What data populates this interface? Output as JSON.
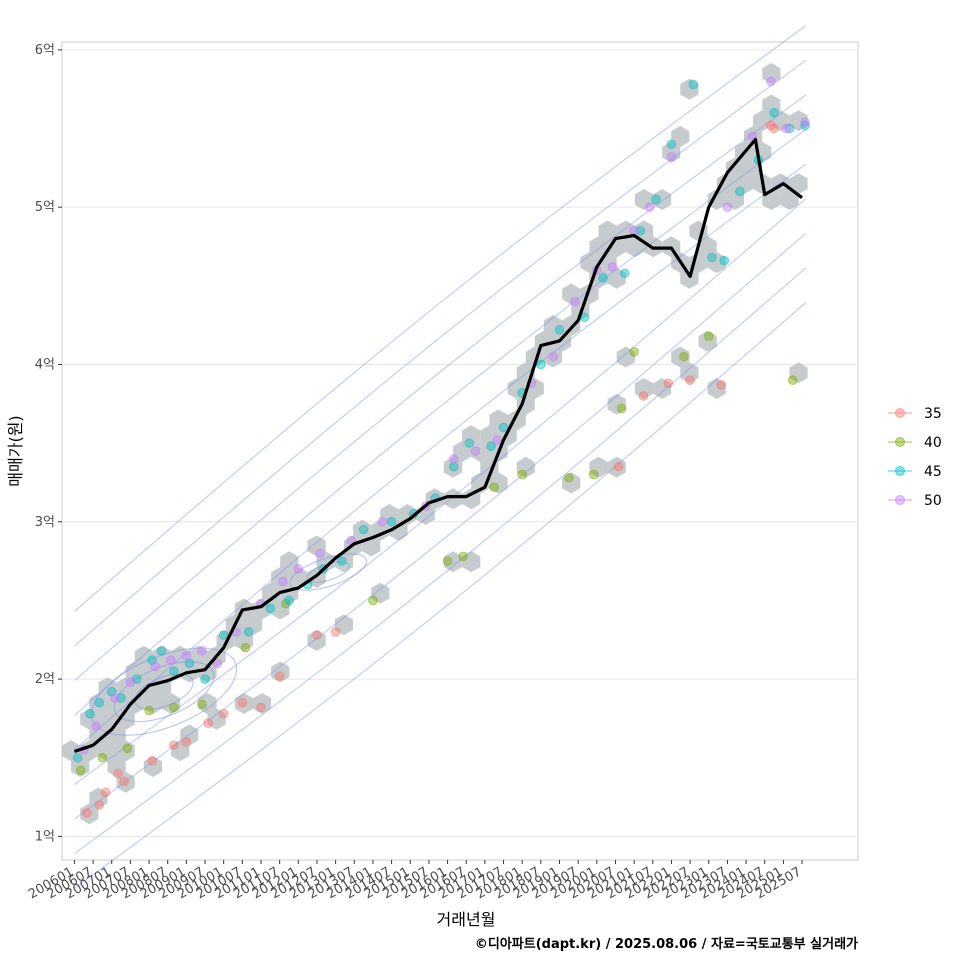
{
  "chart_data": {
    "type": "scatter",
    "xlabel": "거래년월",
    "ylabel": "매매가(원)",
    "caption": "©디아파트(dapt.kr) / 2025.08.06 / 자료=국토교통부 실거래가",
    "x_ticks": [
      "200601",
      "200607",
      "200701",
      "200707",
      "200801",
      "200807",
      "200901",
      "200907",
      "201001",
      "201007",
      "201101",
      "201107",
      "201201",
      "201207",
      "201301",
      "201307",
      "201401",
      "201407",
      "201501",
      "201507",
      "201601",
      "201607",
      "201701",
      "201707",
      "201801",
      "201807",
      "201901",
      "201907",
      "202001",
      "202007",
      "202101",
      "202107",
      "202201",
      "202207",
      "202301",
      "202307",
      "202401",
      "202407",
      "202501",
      "202507"
    ],
    "y_ticks": [
      "1억",
      "2억",
      "3억",
      "4억",
      "5억",
      "6억"
    ],
    "y_values": [
      1,
      2,
      3,
      4,
      5,
      6
    ],
    "ylim": [
      0.85,
      6.05
    ],
    "x_range": [
      "2005-09",
      "2027-01"
    ],
    "legend": {
      "position": "right",
      "items": [
        {
          "label": "35",
          "color": "#F8766D"
        },
        {
          "label": "40",
          "color": "#7CAE00"
        },
        {
          "label": "45",
          "color": "#00BFC4"
        },
        {
          "label": "50",
          "color": "#C77CFF"
        }
      ]
    },
    "trend_line": {
      "color": "#000000",
      "x": [
        "2006-01",
        "2006-07",
        "2007-01",
        "2007-07",
        "2008-01",
        "2008-07",
        "2009-01",
        "2009-07",
        "2010-01",
        "2010-07",
        "2011-01",
        "2011-07",
        "2012-01",
        "2012-07",
        "2013-01",
        "2013-07",
        "2014-01",
        "2014-07",
        "2015-01",
        "2015-07",
        "2016-01",
        "2016-07",
        "2017-01",
        "2017-07",
        "2018-01",
        "2018-07",
        "2019-01",
        "2019-07",
        "2020-01",
        "2020-07",
        "2021-01",
        "2021-07",
        "2022-01",
        "2022-07",
        "2023-01",
        "2023-07",
        "2024-01",
        "2024-04",
        "2024-07",
        "2025-01",
        "2025-07"
      ],
      "y": [
        1.54,
        1.58,
        1.68,
        1.84,
        1.96,
        1.99,
        2.04,
        2.06,
        2.2,
        2.44,
        2.46,
        2.55,
        2.58,
        2.66,
        2.77,
        2.86,
        2.9,
        2.95,
        3.02,
        3.12,
        3.16,
        3.16,
        3.22,
        3.52,
        3.75,
        4.12,
        4.15,
        4.28,
        4.62,
        4.8,
        4.82,
        4.74,
        4.74,
        4.56,
        5.0,
        5.22,
        5.36,
        5.43,
        5.08,
        5.15,
        5.06
      ]
    },
    "series": [
      {
        "name": "35",
        "x": [
          "2006-05",
          "2006-09",
          "2006-11",
          "2007-03",
          "2007-05",
          "2008-02",
          "2008-09",
          "2009-01",
          "2009-08",
          "2010-01",
          "2010-07",
          "2011-01",
          "2011-07",
          "2012-07",
          "2013-01",
          "2020-08",
          "2021-04",
          "2021-12",
          "2022-07",
          "2023-05",
          "2024-09",
          "2024-10"
        ],
        "y": [
          1.15,
          1.2,
          1.28,
          1.4,
          1.35,
          1.48,
          1.58,
          1.6,
          1.72,
          1.78,
          1.85,
          1.82,
          2.02,
          2.28,
          2.3,
          3.35,
          3.8,
          3.88,
          3.9,
          3.87,
          5.52,
          5.5
        ]
      },
      {
        "name": "40",
        "x": [
          "2006-03",
          "2006-10",
          "2007-06",
          "2008-01",
          "2008-09",
          "2009-06",
          "2010-08",
          "2011-09",
          "2014-01",
          "2016-01",
          "2016-06",
          "2017-04",
          "2018-01",
          "2019-04",
          "2019-12",
          "2020-09",
          "2021-01",
          "2022-05",
          "2023-01",
          "2025-04"
        ],
        "y": [
          1.42,
          1.5,
          1.56,
          1.8,
          1.82,
          1.84,
          2.2,
          2.48,
          2.5,
          2.75,
          2.78,
          3.22,
          3.3,
          3.28,
          3.3,
          3.72,
          4.08,
          4.05,
          4.18,
          3.9
        ]
      },
      {
        "name": "45",
        "x": [
          "2006-02",
          "2006-06",
          "2006-09",
          "2007-01",
          "2007-04",
          "2007-09",
          "2008-02",
          "2008-05",
          "2008-09",
          "2009-02",
          "2009-07",
          "2010-01",
          "2010-09",
          "2011-04",
          "2011-10",
          "2012-04",
          "2012-09",
          "2013-03",
          "2013-10",
          "2014-07",
          "2015-02",
          "2015-09",
          "2016-03",
          "2016-08",
          "2017-03",
          "2017-07",
          "2018-01",
          "2018-07",
          "2019-01",
          "2019-09",
          "2020-03",
          "2020-10",
          "2021-03",
          "2021-08",
          "2022-01",
          "2022-08",
          "2023-02",
          "2023-06",
          "2023-11",
          "2024-05",
          "2024-10",
          "2025-03",
          "2025-08"
        ],
        "y": [
          1.5,
          1.78,
          1.85,
          1.92,
          1.88,
          2.0,
          2.12,
          2.18,
          2.05,
          2.1,
          2.0,
          2.28,
          2.3,
          2.45,
          2.5,
          2.6,
          2.7,
          2.75,
          2.95,
          3.0,
          3.05,
          3.15,
          3.35,
          3.5,
          3.48,
          3.6,
          3.82,
          4.0,
          4.22,
          4.3,
          4.55,
          4.58,
          4.85,
          5.05,
          5.4,
          5.78,
          4.68,
          4.66,
          5.1,
          5.3,
          5.6,
          5.5,
          5.52
        ]
      },
      {
        "name": "50",
        "x": [
          "2006-04",
          "2006-08",
          "2007-02",
          "2007-07",
          "2008-03",
          "2008-08",
          "2009-01",
          "2009-06",
          "2009-11",
          "2010-05",
          "2011-01",
          "2011-08",
          "2012-01",
          "2012-08",
          "2013-06",
          "2014-04",
          "2015-06",
          "2016-03",
          "2016-10",
          "2017-05",
          "2018-04",
          "2018-11",
          "2019-06",
          "2020-01",
          "2020-06",
          "2021-01",
          "2021-06",
          "2022-01",
          "2023-07",
          "2024-03",
          "2024-09",
          "2025-02",
          "2025-08"
        ],
        "y": [
          1.55,
          1.7,
          1.88,
          1.98,
          2.08,
          2.12,
          2.15,
          2.18,
          2.1,
          2.3,
          2.48,
          2.62,
          2.7,
          2.8,
          2.88,
          3.0,
          3.1,
          3.4,
          3.45,
          3.52,
          3.88,
          4.05,
          4.4,
          4.6,
          4.62,
          4.85,
          5.0,
          5.32,
          5.0,
          5.45,
          5.8,
          5.5,
          5.54
        ]
      }
    ]
  }
}
